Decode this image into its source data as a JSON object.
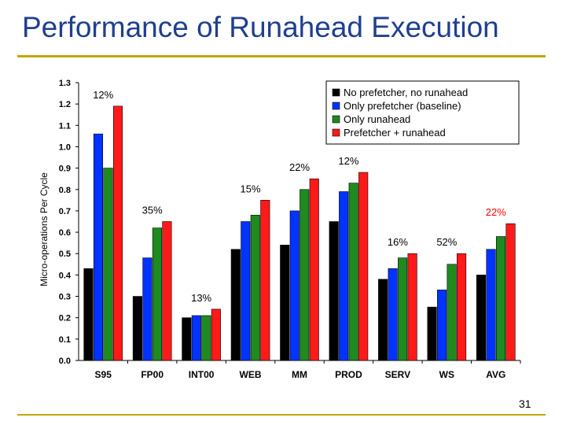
{
  "slide": {
    "title": "Performance of Runahead Execution",
    "page_number": "31",
    "colors": {
      "title": "#1f3f8f",
      "rule": "#c8a400"
    }
  },
  "chart_data": {
    "type": "bar",
    "ylabel": "Micro-operations Per Cycle",
    "xlabel": "",
    "ylim": [
      0.0,
      1.3
    ],
    "yticks": [
      "0.0",
      "0.1",
      "0.2",
      "0.3",
      "0.4",
      "0.5",
      "0.6",
      "0.7",
      "0.8",
      "0.9",
      "1.0",
      "1.1",
      "1.2",
      "1.3"
    ],
    "grid": false,
    "legend_position": "top-right",
    "categories": [
      "S95",
      "FP00",
      "INT00",
      "WEB",
      "MM",
      "PROD",
      "SERV",
      "WS",
      "AVG"
    ],
    "series": [
      {
        "name": "No prefetcher, no runahead",
        "color": "#000000",
        "values": [
          0.43,
          0.3,
          0.2,
          0.52,
          0.54,
          0.65,
          0.38,
          0.25,
          0.4
        ]
      },
      {
        "name": "Only prefetcher (baseline)",
        "color": "#0033ff",
        "values": [
          1.06,
          0.48,
          0.21,
          0.65,
          0.7,
          0.79,
          0.43,
          0.33,
          0.52
        ]
      },
      {
        "name": "Only runahead",
        "color": "#1f8a1f",
        "values": [
          0.9,
          0.62,
          0.21,
          0.68,
          0.8,
          0.83,
          0.48,
          0.45,
          0.58
        ]
      },
      {
        "name": "Prefetcher + runahead",
        "color": "#ff1a1a",
        "values": [
          1.19,
          0.65,
          0.24,
          0.75,
          0.85,
          0.88,
          0.5,
          0.5,
          0.64
        ]
      }
    ],
    "annotations": [
      {
        "text": "12%",
        "category": "S95",
        "color": "#000000"
      },
      {
        "text": "35%",
        "category": "FP00",
        "color": "#000000"
      },
      {
        "text": "13%",
        "category": "INT00",
        "color": "#000000"
      },
      {
        "text": "15%",
        "category": "WEB",
        "color": "#000000"
      },
      {
        "text": "22%",
        "category": "MM",
        "color": "#000000"
      },
      {
        "text": "12%",
        "category": "PROD",
        "color": "#000000"
      },
      {
        "text": "16%",
        "category": "SERV",
        "color": "#000000"
      },
      {
        "text": "52%",
        "category": "WS",
        "color": "#000000"
      },
      {
        "text": "22%",
        "category": "AVG",
        "color": "#ff0000"
      }
    ]
  }
}
